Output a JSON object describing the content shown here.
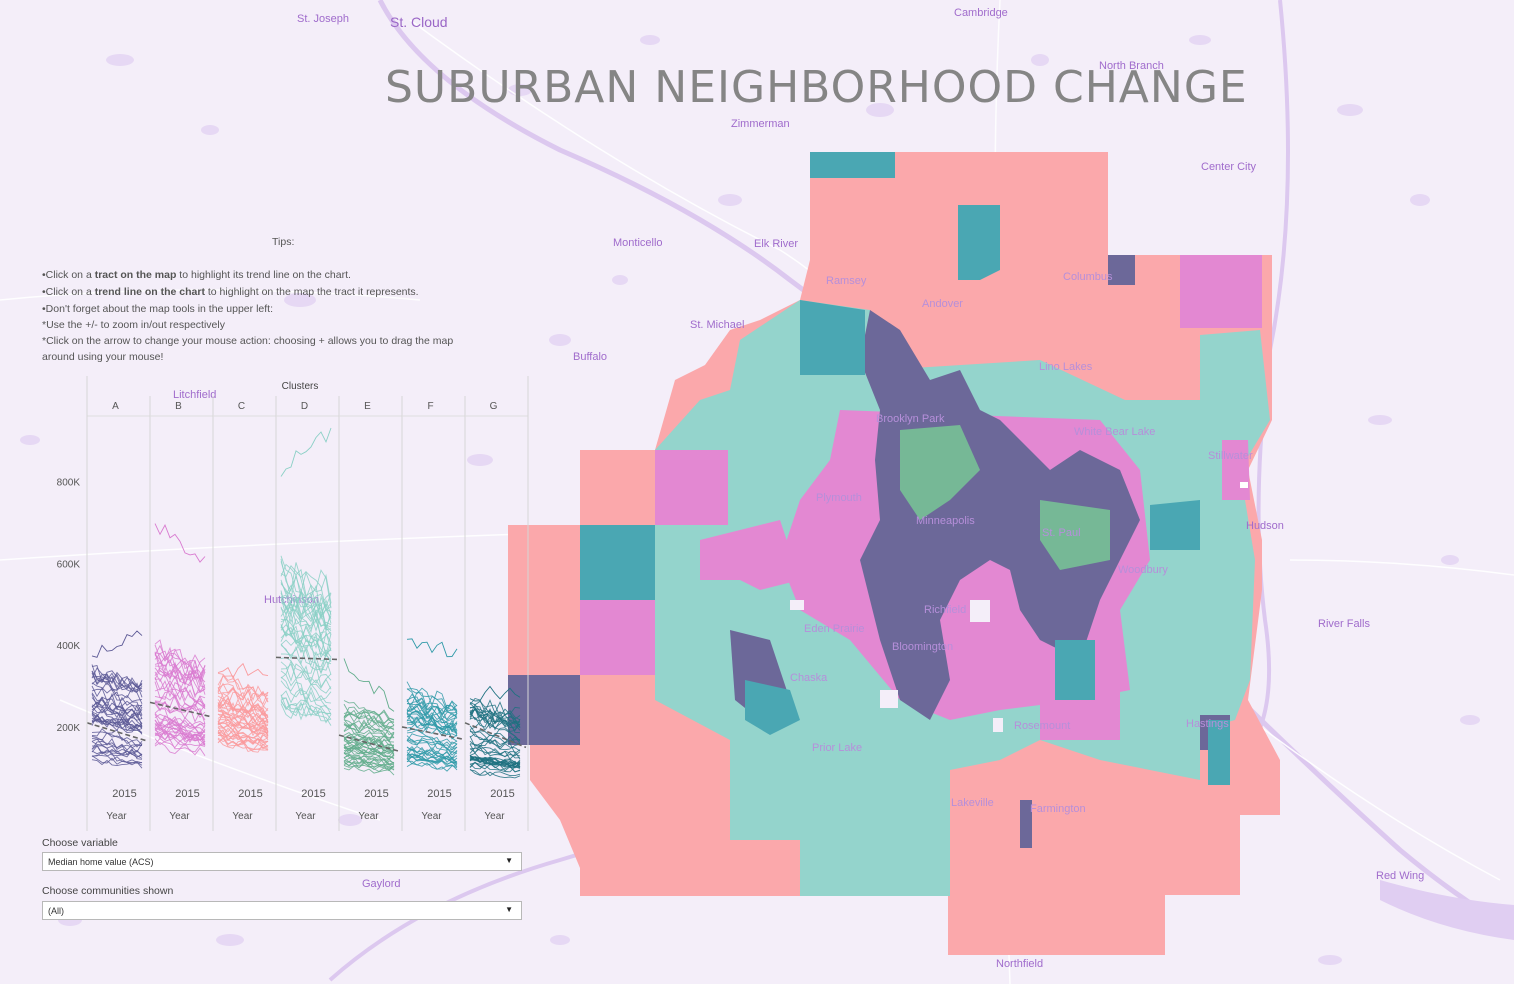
{
  "title": "SUBURBAN NEIGHBORHOOD CHANGE",
  "tips": {
    "label": "Tips:",
    "line1_pre": "•Click on a ",
    "line1_bold": "tract on the map",
    "line1_post": " to highlight its trend line on the chart.",
    "line2_pre": "•Click on a ",
    "line2_bold": "trend line on the chart",
    "line2_post": " to highlight on the map the tract it represents.",
    "line3": "•Don't forget about the map tools in the upper left:",
    "line4": "*Use the +/- to zoom in/out respectively",
    "line5": "*Click on the arrow to change your mouse action:  choosing + allows you to drag the map",
    "line6": "around using your mouse!"
  },
  "places": [
    {
      "name": "St. Joseph"
    },
    {
      "name": "St. Cloud"
    },
    {
      "name": "Cambridge"
    },
    {
      "name": "North Branch"
    },
    {
      "name": "Zimmerman"
    },
    {
      "name": "Center City"
    },
    {
      "name": "Monticello"
    },
    {
      "name": "Elk River"
    },
    {
      "name": "St. Michael"
    },
    {
      "name": "Buffalo"
    },
    {
      "name": "Litchfield"
    },
    {
      "name": "Hutchinson"
    },
    {
      "name": "Gaylord"
    },
    {
      "name": "Northfield"
    },
    {
      "name": "Red Wing"
    },
    {
      "name": "River Falls"
    },
    {
      "name": "Hudson"
    },
    {
      "name": "Stillwater"
    },
    {
      "name": "Ramsey"
    },
    {
      "name": "Andover"
    },
    {
      "name": "Columbus"
    },
    {
      "name": "Lino Lakes"
    },
    {
      "name": "White Bear Lake"
    },
    {
      "name": "Brooklyn Park"
    },
    {
      "name": "Plymouth"
    },
    {
      "name": "Minneapolis"
    },
    {
      "name": "St. Paul"
    },
    {
      "name": "Woodbury"
    },
    {
      "name": "Richfield"
    },
    {
      "name": "Eden Prairie"
    },
    {
      "name": "Bloomington"
    },
    {
      "name": "Chaska"
    },
    {
      "name": "Prior Lake"
    },
    {
      "name": "Lakeville"
    },
    {
      "name": "Farmington"
    },
    {
      "name": "Rosemount"
    },
    {
      "name": "Hastings"
    }
  ],
  "colors": {
    "A": "#5b5895",
    "B": "#d97ad0",
    "C": "#fa9b9e",
    "D": "#8bd0c6",
    "E": "#62ad8c",
    "F": "#2f9aa8",
    "G": "#1e7180",
    "map_salmon": "#fba8ab",
    "map_teal": "#94d4cc",
    "map_pink": "#e388d2",
    "map_purple": "#6c6899",
    "map_cyan": "#4aa7b3",
    "map_green": "#76b896",
    "base": "#f4eef9",
    "water": "#e0cef2"
  },
  "chart_data": {
    "type": "line",
    "title": "Clusters",
    "x_axis_label": "Year",
    "x_tick": "2015",
    "ylim": [
      80000,
      960000
    ],
    "y_ticks": [
      200000,
      400000,
      600000,
      800000
    ],
    "y_tick_labels": [
      "200K",
      "400K",
      "600K",
      "800K"
    ],
    "panels": [
      {
        "cluster": "A",
        "years": [
          2005,
          2016
        ],
        "median_range": [
          120000,
          340000
        ],
        "highest": [
          380000,
          440000
        ],
        "trend": [
          210000,
          165000
        ]
      },
      {
        "cluster": "B",
        "years": [
          2005,
          2016
        ],
        "median_range": [
          150000,
          400000
        ],
        "highest": [
          700000,
          600000
        ],
        "trend": [
          260000,
          225000
        ]
      },
      {
        "cluster": "C",
        "years": [
          2005,
          2016
        ],
        "median_range": [
          160000,
          320000
        ],
        "highest": [
          340000,
          330000
        ],
        "trend": null
      },
      {
        "cluster": "D",
        "years": [
          2005,
          2016
        ],
        "median_range": [
          240000,
          600000
        ],
        "highest": [
          830000,
          920000
        ],
        "trend": [
          370000,
          365000
        ]
      },
      {
        "cluster": "E",
        "years": [
          2005,
          2016
        ],
        "median_range": [
          100000,
          250000
        ],
        "highest": [
          350000,
          250000
        ],
        "trend": [
          180000,
          140000
        ]
      },
      {
        "cluster": "F",
        "years": [
          2005,
          2016
        ],
        "median_range": [
          110000,
          300000
        ],
        "highest": [
          420000,
          380000
        ],
        "trend": [
          200000,
          170000
        ]
      },
      {
        "cluster": "G",
        "years": [
          2005,
          2016
        ],
        "median_range": [
          90000,
          260000
        ],
        "highest": [
          280000,
          280000
        ],
        "trend": [
          210000,
          150000
        ]
      }
    ]
  },
  "controls": {
    "variable_label": "Choose variable",
    "variable_value": "Median home value (ACS)",
    "community_label": "Choose communities shown",
    "community_value": "(All)"
  }
}
